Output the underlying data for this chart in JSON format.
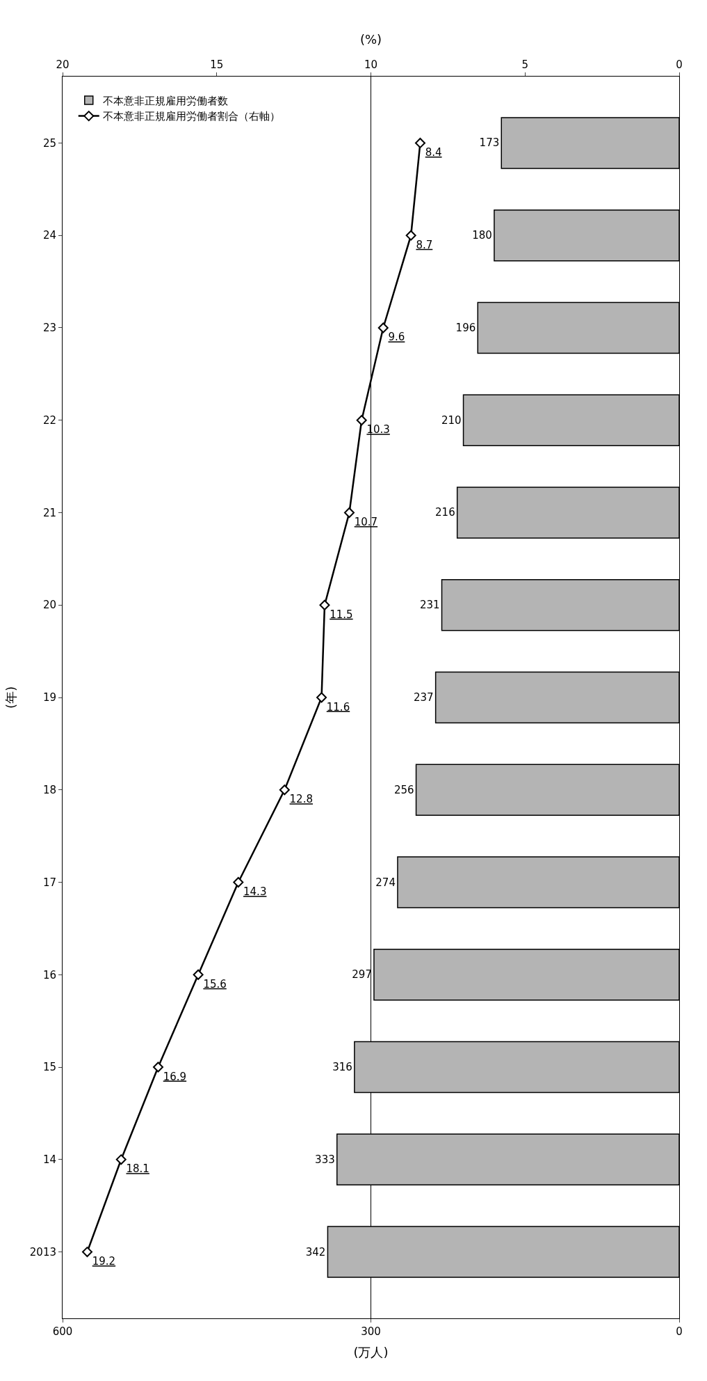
{
  "chart_data": {
    "type": "bar",
    "orientation": "horizontal",
    "categories": [
      "25",
      "24",
      "23",
      "22",
      "21",
      "20",
      "19",
      "18",
      "17",
      "16",
      "15",
      "14",
      "2013"
    ],
    "series": [
      {
        "name": "不本意非正規雇用労働者数",
        "color": "#b4b4b4",
        "values": [
          173,
          180,
          196,
          210,
          216,
          231,
          237,
          256,
          274,
          297,
          316,
          333,
          342
        ]
      },
      {
        "name": "不本意非正規雇用労働者割合（右軸）",
        "type": "line",
        "axis": "x2",
        "color": "#000000",
        "marker": "diamond",
        "line_style": "solid",
        "values": [
          8.4,
          8.7,
          9.6,
          10.3,
          10.7,
          11.5,
          11.6,
          12.8,
          14.3,
          15.6,
          16.9,
          18.1,
          19.2
        ]
      }
    ],
    "xlim": [
      600,
      0
    ],
    "xticks": [
      0,
      300,
      600
    ],
    "x2lim": [
      20,
      0
    ],
    "x2ticks": [
      0,
      5,
      10,
      15,
      20
    ],
    "xlabel": "(万人)",
    "x2label": "(%)",
    "ylabel": "(年)",
    "grid": "x",
    "legend": "top left",
    "data_labels": true
  }
}
